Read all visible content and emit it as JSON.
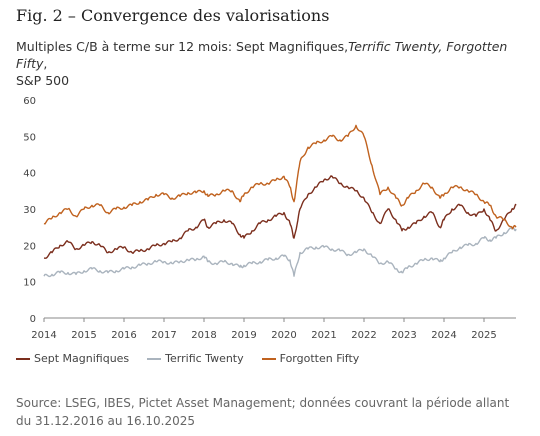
{
  "title": "Fig. 2 – Convergence des valorisations",
  "subtitle": {
    "part1": "Multiples C/B à terme sur 12 mois: Sept Magnifiques,",
    "part2_italic": "Terrific Twenty, Forgotten Fifty",
    "part3": ",",
    "line2": "S&P 500"
  },
  "source": "Source: LSEG, IBES, Pictet Asset Management; données couvrant la période allant du 31.12.2016 au 16.10.2025",
  "chart_data": {
    "type": "line",
    "xlim": [
      2014,
      2025.8
    ],
    "ylim": [
      0,
      60
    ],
    "yticks": [
      0,
      10,
      20,
      30,
      40,
      50,
      60
    ],
    "xticks": [
      2014,
      2015,
      2016,
      2017,
      2018,
      2019,
      2020,
      2021,
      2022,
      2023,
      2024,
      2025
    ],
    "grid": false,
    "legend_position": "bottom",
    "series": [
      {
        "name": "Sept Magnifiques",
        "color": "#7b2e1d",
        "x": [
          2014.0,
          2014.2,
          2014.4,
          2014.6,
          2014.8,
          2015.0,
          2015.2,
          2015.4,
          2015.6,
          2015.8,
          2016.0,
          2016.2,
          2016.4,
          2016.6,
          2016.8,
          2017.0,
          2017.2,
          2017.4,
          2017.6,
          2017.8,
          2018.0,
          2018.1,
          2018.3,
          2018.5,
          2018.7,
          2018.9,
          2019.0,
          2019.2,
          2019.4,
          2019.6,
          2019.8,
          2020.0,
          2020.15,
          2020.25,
          2020.4,
          2020.6,
          2020.8,
          2021.0,
          2021.2,
          2021.4,
          2021.6,
          2021.8,
          2022.0,
          2022.2,
          2022.4,
          2022.6,
          2022.8,
          2022.95,
          2023.1,
          2023.3,
          2023.5,
          2023.7,
          2023.9,
          2024.0,
          2024.2,
          2024.4,
          2024.6,
          2024.8,
          2025.0,
          2025.15,
          2025.3,
          2025.5,
          2025.7,
          2025.8
        ],
        "values": [
          16.5,
          18,
          20,
          21,
          19,
          20,
          21,
          20,
          18,
          19,
          19.5,
          18,
          18.5,
          19,
          20,
          20.5,
          21,
          22,
          24,
          25,
          27,
          25,
          26,
          27,
          26,
          23,
          22,
          24,
          26,
          27,
          28,
          29,
          26,
          22,
          30,
          34,
          36,
          38,
          39,
          37,
          36,
          35,
          33,
          29,
          26,
          30,
          27,
          24,
          25,
          26,
          28,
          29,
          25,
          27,
          30,
          31,
          29,
          28,
          30,
          27,
          24,
          27,
          30,
          31
        ]
      },
      {
        "name": "Terrific Twenty",
        "color": "#aab4be",
        "x": [
          2014.0,
          2014.2,
          2014.4,
          2014.6,
          2014.8,
          2015.0,
          2015.2,
          2015.4,
          2015.6,
          2015.8,
          2016.0,
          2016.2,
          2016.4,
          2016.6,
          2016.8,
          2017.0,
          2017.2,
          2017.4,
          2017.6,
          2017.8,
          2018.0,
          2018.1,
          2018.3,
          2018.5,
          2018.7,
          2018.9,
          2019.0,
          2019.2,
          2019.4,
          2019.6,
          2019.8,
          2020.0,
          2020.15,
          2020.25,
          2020.4,
          2020.6,
          2020.8,
          2021.0,
          2021.2,
          2021.4,
          2021.6,
          2021.8,
          2022.0,
          2022.2,
          2022.4,
          2022.6,
          2022.8,
          2022.95,
          2023.1,
          2023.3,
          2023.5,
          2023.7,
          2023.9,
          2024.0,
          2024.2,
          2024.4,
          2024.6,
          2024.8,
          2025.0,
          2025.15,
          2025.3,
          2025.5,
          2025.7,
          2025.8
        ],
        "values": [
          11.5,
          12,
          12.5,
          12.5,
          12,
          13,
          13.5,
          13,
          12.5,
          13,
          13.5,
          14,
          14.5,
          15,
          15.5,
          15.5,
          15,
          15.5,
          16,
          16,
          17,
          15.5,
          15,
          15.5,
          15,
          14,
          14.5,
          15,
          15.5,
          16,
          16.5,
          17,
          16,
          11.5,
          18,
          19,
          19.5,
          19.5,
          19,
          18.5,
          17.5,
          18,
          19,
          17,
          15,
          15.5,
          13.5,
          12.5,
          14,
          15,
          16,
          16.5,
          15.5,
          16.5,
          18,
          19.5,
          20,
          20.5,
          22,
          21.5,
          22,
          23.5,
          24.5,
          24.5
        ]
      },
      {
        "name": "Forgotten Fifty",
        "color": "#c0621f",
        "x": [
          2014.0,
          2014.2,
          2014.4,
          2014.6,
          2014.8,
          2015.0,
          2015.2,
          2015.4,
          2015.6,
          2015.8,
          2016.0,
          2016.2,
          2016.4,
          2016.6,
          2016.8,
          2017.0,
          2017.2,
          2017.4,
          2017.6,
          2017.8,
          2018.0,
          2018.1,
          2018.3,
          2018.5,
          2018.7,
          2018.9,
          2019.0,
          2019.2,
          2019.4,
          2019.6,
          2019.8,
          2020.0,
          2020.15,
          2020.25,
          2020.4,
          2020.6,
          2020.8,
          2021.0,
          2021.2,
          2021.4,
          2021.6,
          2021.8,
          2022.0,
          2022.2,
          2022.4,
          2022.6,
          2022.8,
          2022.95,
          2023.1,
          2023.3,
          2023.5,
          2023.7,
          2023.9,
          2024.0,
          2024.2,
          2024.4,
          2024.6,
          2024.8,
          2025.0,
          2025.15,
          2025.3,
          2025.5,
          2025.7,
          2025.8
        ],
        "values": [
          26,
          27.5,
          29,
          30,
          28,
          30,
          31,
          31,
          29,
          30,
          30.5,
          31,
          32,
          32.5,
          34,
          34,
          33,
          33.5,
          34.5,
          34.5,
          35,
          33.5,
          34,
          35,
          35,
          32,
          34,
          36,
          37,
          37,
          38,
          39,
          36,
          32,
          43,
          47,
          48,
          49,
          50,
          49,
          50,
          53,
          50,
          42,
          34,
          36,
          33,
          31,
          33,
          35,
          37,
          36,
          33,
          34,
          36,
          36,
          35,
          34,
          32,
          31,
          28,
          27,
          25,
          25
        ]
      }
    ]
  }
}
